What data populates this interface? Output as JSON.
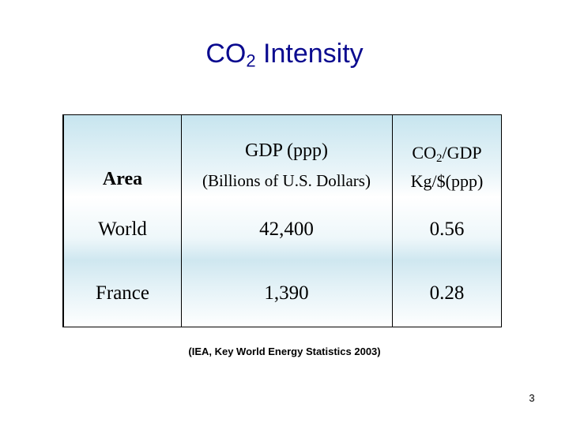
{
  "slide": {
    "title_main": "CO",
    "title_subscript": "2",
    "title_rest": " Intensity",
    "source": "(IEA, Key World Energy Statistics 2003)",
    "page_number": "3"
  },
  "table": {
    "headers": {
      "area": "Area",
      "gdp_line1": "GDP (ppp)",
      "gdp_line2": "(Billions of U.S. Dollars)",
      "co2_prefix": "CO",
      "co2_subscript": "2",
      "co2_suffix": "/GDP",
      "co2_line2": "Kg/$(ppp)"
    },
    "rows": [
      {
        "area": "World",
        "gdp": "42,400",
        "co2_per_gdp": "0.56"
      },
      {
        "area": "France",
        "gdp": "1,390",
        "co2_per_gdp": "0.28"
      }
    ]
  },
  "colors": {
    "title": "#0a0a8f",
    "cell_tint": "#c7e5ef"
  }
}
